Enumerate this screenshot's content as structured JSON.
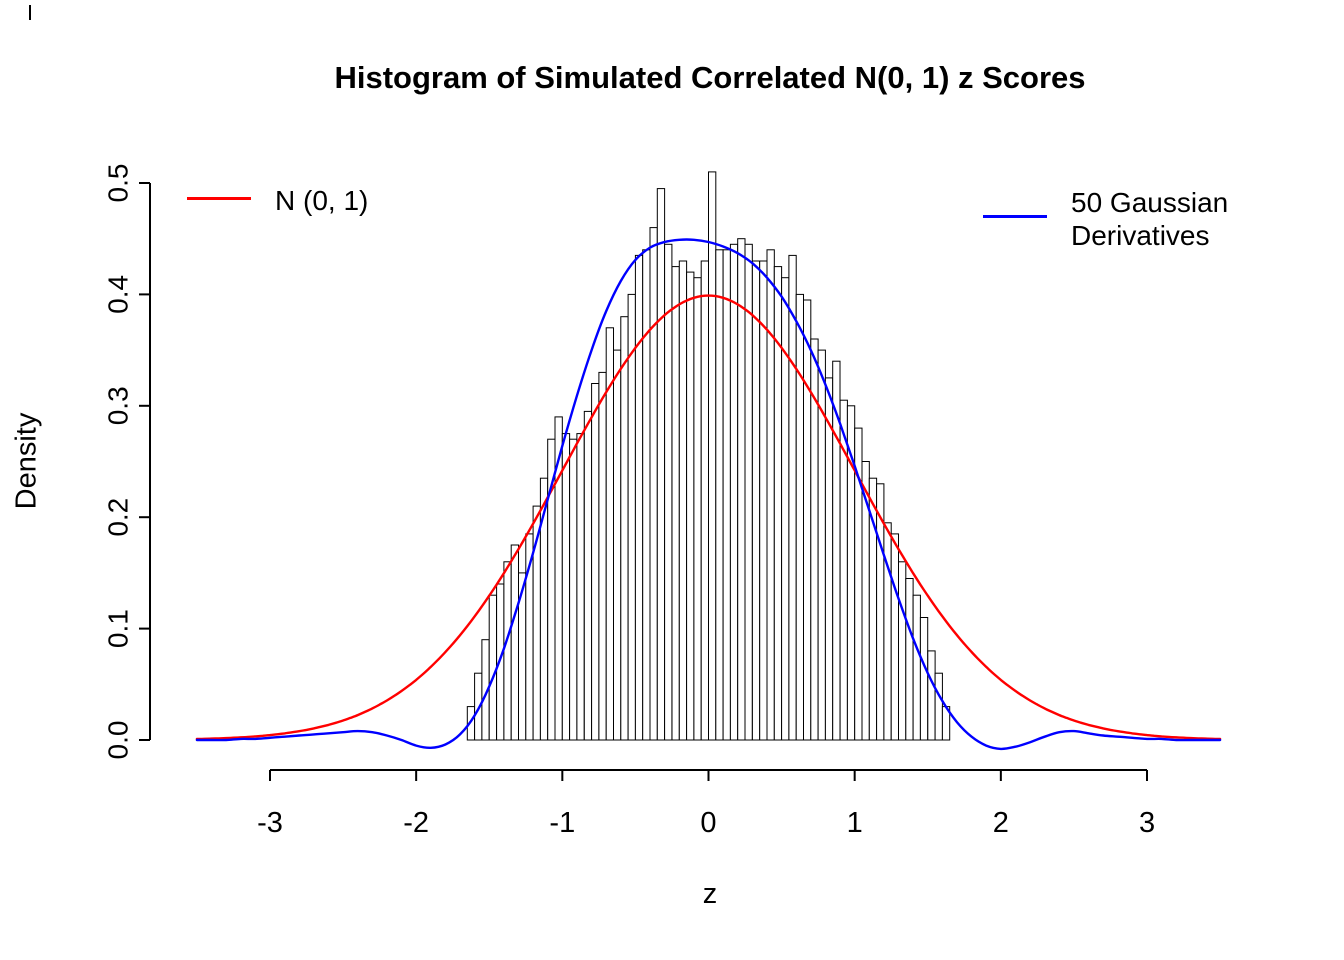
{
  "title": "Histogram of Simulated Correlated N(0, 1) z Scores",
  "xlabel": "z",
  "ylabel": "Density",
  "legend": {
    "normal": {
      "label": "N (0, 1)",
      "color": "#FF0000"
    },
    "gaussian_derivatives": {
      "label": "50 Gaussian\nDerivatives",
      "color": "#0000FF"
    }
  },
  "colors": {
    "axis": "#000000",
    "histogram_fill": "#FFFFFF",
    "histogram_stroke": "#000000",
    "normal_curve": "#FF0000",
    "derivatives_curve": "#0000FF",
    "background": "#FFFFFF"
  },
  "chart_data": {
    "type": "histogram+line",
    "title": "Histogram of Simulated Correlated N(0, 1) z Scores",
    "xlabel": "z",
    "ylabel": "Density",
    "xlim": [
      -3.5,
      3.5
    ],
    "ylim": [
      0,
      0.5
    ],
    "grid": false,
    "x_ticks": [
      -3,
      -2,
      -1,
      0,
      1,
      2,
      3
    ],
    "x_tick_labels": [
      "-3",
      "-2",
      "-1",
      "0",
      "1",
      "2",
      "3"
    ],
    "y_ticks": [
      0,
      0.1,
      0.2,
      0.3,
      0.4,
      0.5
    ],
    "y_tick_labels": [
      "0.0",
      "0.1",
      "0.2",
      "0.3",
      "0.4",
      "0.5"
    ],
    "histogram": {
      "bin_start": -1.65,
      "bin_width": 0.05,
      "densities": [
        0.03,
        0.06,
        0.09,
        0.13,
        0.14,
        0.16,
        0.175,
        0.15,
        0.185,
        0.21,
        0.235,
        0.27,
        0.29,
        0.275,
        0.27,
        0.275,
        0.295,
        0.32,
        0.33,
        0.37,
        0.35,
        0.38,
        0.4,
        0.435,
        0.44,
        0.46,
        0.495,
        0.445,
        0.425,
        0.43,
        0.42,
        0.415,
        0.43,
        0.51,
        0.44,
        0.44,
        0.445,
        0.45,
        0.445,
        0.43,
        0.43,
        0.44,
        0.425,
        0.415,
        0.435,
        0.4,
        0.395,
        0.36,
        0.35,
        0.325,
        0.34,
        0.305,
        0.3,
        0.28,
        0.25,
        0.235,
        0.23,
        0.195,
        0.185,
        0.16,
        0.145,
        0.13,
        0.11,
        0.08,
        0.06,
        0.03
      ]
    },
    "series": [
      {
        "name": "N (0, 1)",
        "type": "normal_pdf",
        "mean": 0,
        "sd": 1,
        "color": "#FF0000",
        "x_range": [
          -3.5,
          3.5
        ]
      },
      {
        "name": "50 Gaussian Derivatives",
        "type": "points",
        "color": "#0000FF",
        "x_start": -3.5,
        "x_step": 0.1,
        "y": [
          0,
          0,
          0,
          0.001,
          0.001,
          0.002,
          0.003,
          0.004,
          0.005,
          0.006,
          0.007,
          0.008,
          0.007,
          0.004,
          0,
          -0.005,
          -0.007,
          -0.004,
          0.005,
          0.022,
          0.048,
          0.082,
          0.123,
          0.168,
          0.216,
          0.264,
          0.309,
          0.35,
          0.385,
          0.412,
          0.431,
          0.442,
          0.447,
          0.449,
          0.449,
          0.447,
          0.443,
          0.437,
          0.428,
          0.415,
          0.398,
          0.376,
          0.35,
          0.319,
          0.284,
          0.246,
          0.206,
          0.166,
          0.127,
          0.091,
          0.06,
          0.035,
          0.016,
          0.003,
          -0.005,
          -0.008,
          -0.006,
          -0.002,
          0.003,
          0.007,
          0.008,
          0.006,
          0.004,
          0.003,
          0.002,
          0.001,
          0.001,
          0,
          0,
          0,
          0
        ]
      }
    ],
    "legend_position": [
      "top-left",
      "top-right"
    ]
  }
}
